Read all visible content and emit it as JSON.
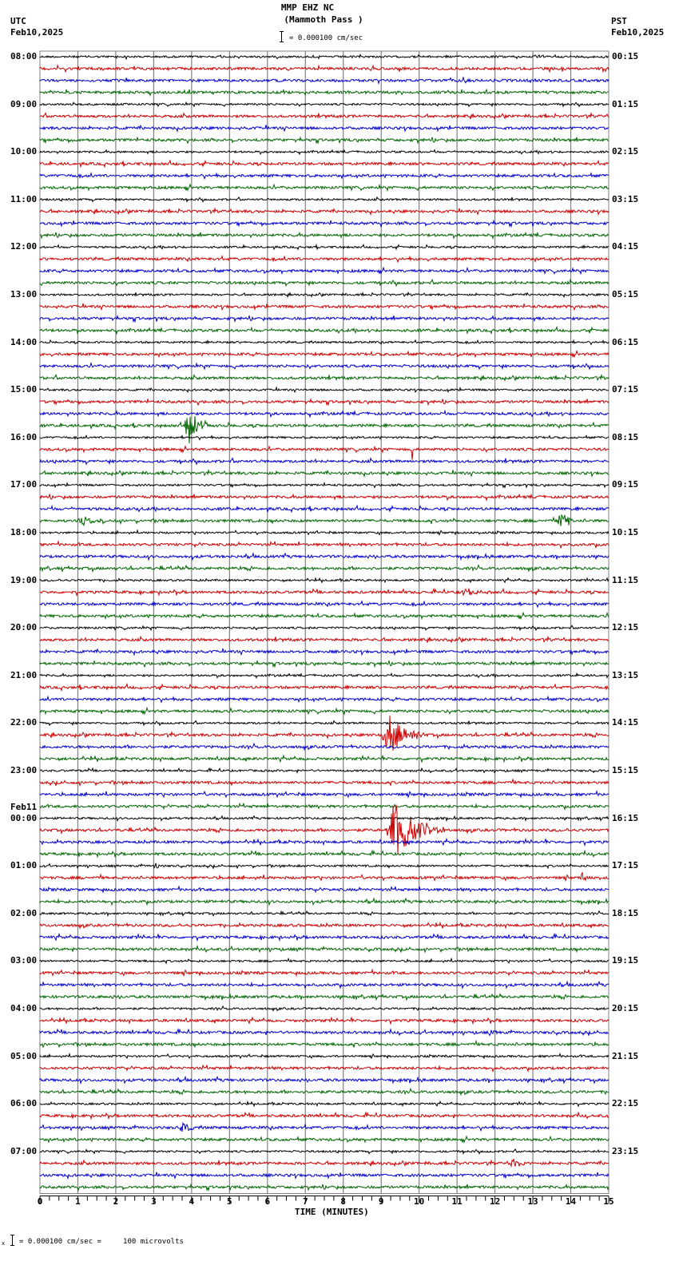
{
  "header": {
    "station": "MMP EHZ NC",
    "location": "(Mammoth Pass )",
    "scale_text": "= 0.000100 cm/sec",
    "left_tz": "UTC",
    "left_date": "Feb10,2025",
    "right_tz": "PST",
    "right_date": "Feb10,2025"
  },
  "footer": {
    "scale_note": "= 0.000100 cm/sec =     100 microvolts",
    "x_axis_label": "TIME (MINUTES)"
  },
  "colors": {
    "trace_cycle": [
      "#000000",
      "#cc0000",
      "#0000cc",
      "#006600"
    ],
    "grid": "#808080",
    "event": "#ff0000"
  },
  "chart_data": {
    "type": "line",
    "title": "MMP EHZ NC (Mammoth Pass )",
    "subtitle": "= 0.000100 cm/sec",
    "xlabel": "TIME (MINUTES)",
    "ylabel": "",
    "xlim": [
      0,
      15
    ],
    "x_ticks": [
      0,
      1,
      2,
      3,
      4,
      5,
      6,
      7,
      8,
      9,
      10,
      11,
      12,
      13,
      14,
      15
    ],
    "grid": true,
    "rows_per_hour": 4,
    "minutes_per_row": 15,
    "total_rows": 96,
    "left_hour_labels": [
      "08:00",
      "09:00",
      "10:00",
      "11:00",
      "12:00",
      "13:00",
      "14:00",
      "15:00",
      "16:00",
      "17:00",
      "18:00",
      "19:00",
      "20:00",
      "21:00",
      "22:00",
      "23:00",
      "00:00",
      "01:00",
      "02:00",
      "03:00",
      "04:00",
      "05:00",
      "06:00",
      "07:00"
    ],
    "left_date_change": {
      "row_hour_index": 16,
      "label": "Feb11"
    },
    "right_hour_labels": [
      "00:15",
      "01:15",
      "02:15",
      "03:15",
      "04:15",
      "05:15",
      "06:15",
      "07:15",
      "08:15",
      "09:15",
      "10:15",
      "11:15",
      "12:15",
      "13:15",
      "14:15",
      "15:15",
      "16:15",
      "17:15",
      "18:15",
      "19:15",
      "20:15",
      "21:15",
      "22:15",
      "23:15"
    ],
    "events": [
      {
        "row": 31,
        "minute": 3.8,
        "amplitude": 28,
        "duration": 0.8,
        "color_index": 3
      },
      {
        "row": 33,
        "minute": 9.8,
        "amplitude": 14,
        "duration": 0.1,
        "color_index": 1
      },
      {
        "row": 39,
        "minute": 1.0,
        "amplitude": 5,
        "duration": 1.0,
        "color_index": 3
      },
      {
        "row": 39,
        "minute": 13.65,
        "amplitude": 20,
        "duration": 0.5,
        "color_index": 0
      },
      {
        "row": 45,
        "minute": 11.0,
        "amplitude": 6,
        "duration": 1.0,
        "color_index": 1
      },
      {
        "row": 57,
        "minute": 9.0,
        "amplitude": 30,
        "duration": 1.2,
        "color_index": 1
      },
      {
        "row": 65,
        "minute": 9.1,
        "amplitude": 40,
        "duration": 1.6,
        "color_index": 1
      },
      {
        "row": 68,
        "minute": 3.0,
        "amplitude": 6,
        "duration": 0.3,
        "color_index": 0
      },
      {
        "row": 69,
        "minute": 14.25,
        "amplitude": 10,
        "duration": 0.3,
        "color_index": 1
      },
      {
        "row": 82,
        "minute": 11.8,
        "amplitude": 7,
        "duration": 0.3,
        "color_index": 3
      },
      {
        "row": 90,
        "minute": 3.7,
        "amplitude": 10,
        "duration": 0.4,
        "color_index": 2
      },
      {
        "row": 93,
        "minute": 12.4,
        "amplitude": 10,
        "duration": 0.5,
        "color_index": 1
      }
    ]
  }
}
